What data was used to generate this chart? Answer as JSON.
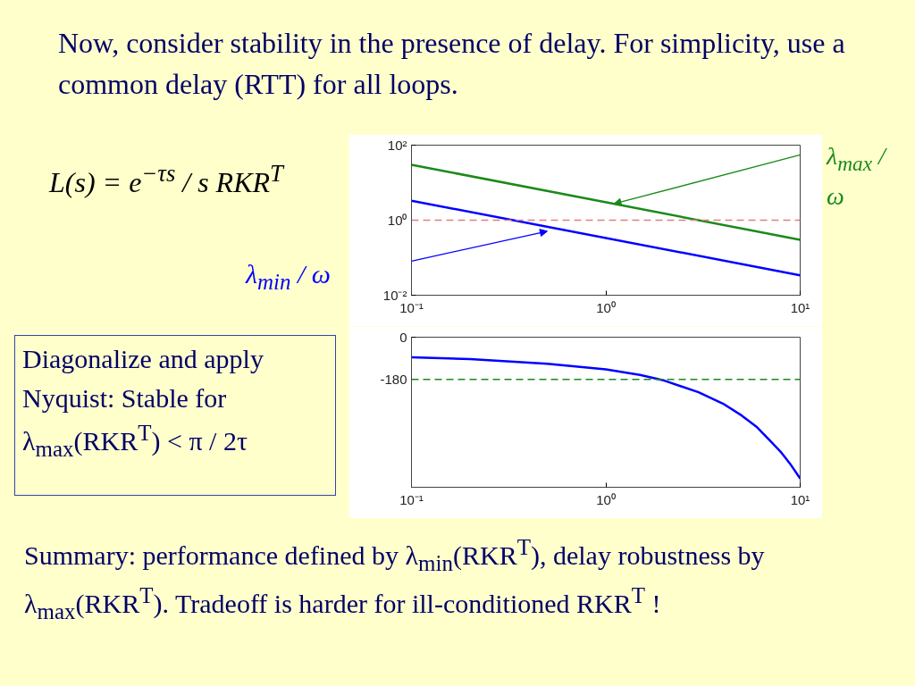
{
  "chart_data": [
    {
      "type": "line",
      "title": "Now, consider stability in the presence of delay. For simplicity, use a common delay (RTT) for all loops.",
      "annotations": [
        "L(s) = e$^{−τs}$ / s RKR$^{T}$",
        "Diagonalize and apply Nyquist: Stable for λ$_{max}$(RKR$^{T}$) < π / 2τ",
        "Summary: performance defined by λ$_{min}$(RKR$^{T}$), delay robustness by λ$_{max}$(RKR$^{T}$). Tradeoff is harder for ill-conditioned RKR$^{T}$ !"
      ],
      "x": [
        0.1,
        10
      ],
      "series": [
        {
          "name": "λ$_{max}$ / ω",
          "color": "#1a8a1a",
          "values": [
            30,
            0.3
          ]
        },
        {
          "name": "λ$_{min}$ / ω",
          "color": "#0000ff",
          "values": [
            3.3,
            0.034
          ]
        }
      ],
      "xlim": [
        0.1,
        10
      ],
      "ylim": [
        0.01,
        100
      ],
      "xticks": [
        {
          "value": 0.1,
          "label": "10⁻¹"
        },
        {
          "value": 1,
          "label": "10⁰"
        },
        {
          "value": 10,
          "label": "10¹"
        }
      ],
      "yticks": [
        {
          "value": 0.01,
          "label": "10⁻²"
        },
        {
          "value": 1,
          "label": "10⁰"
        },
        {
          "value": 100,
          "label": "10²"
        }
      ],
      "log": "xy",
      "grid": false,
      "ref_lines": [
        {
          "axis": "y",
          "value": 1,
          "color": "#e08080",
          "line_style": "dashed"
        }
      ]
    },
    {
      "type": "line",
      "x": [
        0.1,
        0.2,
        0.5,
        1,
        1.5,
        2,
        3,
        4,
        5,
        6,
        7,
        8,
        9,
        10
      ],
      "series": [
        {
          "color": "#0000ff",
          "values": [
            -86,
            -93,
            -113,
            -137,
            -161,
            -185,
            -235,
            -283,
            -334,
            -384,
            -441,
            -492,
            -547,
            -603
          ]
        }
      ],
      "xlim": [
        0.1,
        10
      ],
      "ylim": [
        -640,
        0
      ],
      "xticks": [
        {
          "value": 0.1,
          "label": "10⁻¹"
        },
        {
          "value": 1,
          "label": "10⁰"
        },
        {
          "value": 10,
          "label": "10¹"
        }
      ],
      "yticks": [
        -180,
        0
      ],
      "log": "x",
      "grid": false,
      "ref_lines": [
        {
          "axis": "y",
          "value": -180,
          "color": "#1a8a1a",
          "line_style": "dashed"
        }
      ]
    }
  ]
}
